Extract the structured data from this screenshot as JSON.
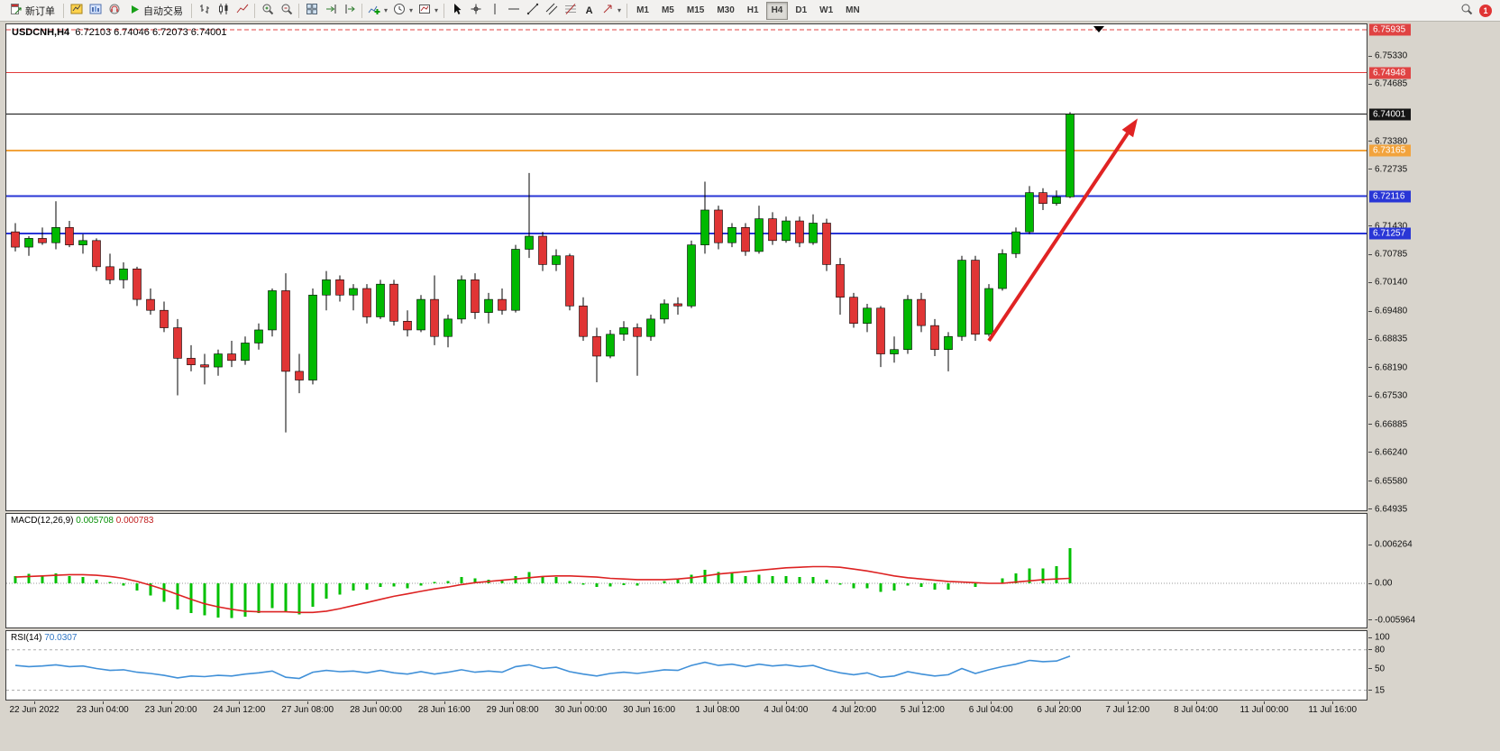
{
  "toolbar": {
    "new_order_label": "新订单",
    "auto_trading_label": "自动交易",
    "timeframes": [
      "M1",
      "M5",
      "M15",
      "M30",
      "H1",
      "H4",
      "D1",
      "W1",
      "MN"
    ],
    "active_timeframe": "H4",
    "badge_count": "1"
  },
  "icons": {
    "text_tool": "A"
  },
  "chart": {
    "symbol_period": "USDCNH,H4",
    "ohlc": "6.72103 6.74046 6.72073 6.74001"
  },
  "macd": {
    "name": "MACD(12,26,9)",
    "value": "0.005708",
    "signal_value": "0.000783"
  },
  "rsi": {
    "name": "RSI(14)",
    "value": "70.0307"
  },
  "chart_data": {
    "type": "candlestick",
    "symbol": "USDCNH",
    "period": "H4",
    "up_color": "#00b900",
    "down_color": "#e03535",
    "price_axis_ticks": [
      "6.75330",
      "6.74685",
      "6.73380",
      "6.72735",
      "6.71430",
      "6.70785",
      "6.70140",
      "6.69480",
      "6.68835",
      "6.68190",
      "6.67530",
      "6.66885",
      "6.66240",
      "6.65580",
      "6.64935"
    ],
    "price_line_labels": [
      {
        "price": 6.75935,
        "text": "6.75935",
        "color": "#e04343"
      },
      {
        "price": 6.74948,
        "text": "6.74948",
        "color": "#e04343"
      },
      {
        "price": 6.74001,
        "text": "6.74001",
        "color": "#151515"
      },
      {
        "price": 6.73165,
        "text": "6.73165",
        "color": "#f2a33c"
      },
      {
        "price": 6.72116,
        "text": "6.72116",
        "color": "#2936d6"
      },
      {
        "price": 6.71257,
        "text": "6.71257",
        "color": "#2936d6"
      }
    ],
    "hlines": [
      {
        "price": 6.75935,
        "color": "#e04343",
        "style": "dashed",
        "width": 1
      },
      {
        "price": 6.74948,
        "color": "#e23b3b",
        "style": "solid",
        "width": 1
      },
      {
        "price": 6.74001,
        "color": "#101010",
        "style": "solid",
        "width": 1
      },
      {
        "price": 6.73165,
        "color": "#f2a33c",
        "style": "solid",
        "width": 2
      },
      {
        "price": 6.72116,
        "color": "#2936d6",
        "style": "solid",
        "width": 2
      },
      {
        "price": 6.71257,
        "color": "#2936d6",
        "style": "solid",
        "width": 2
      }
    ],
    "trend_arrow": {
      "from_candle": 72,
      "from_price": 6.688,
      "to_candle": 83,
      "to_price": 6.739,
      "color": "#e02323"
    },
    "x_labels": [
      "22 Jun 2022",
      "23 Jun 04:00",
      "23 Jun 20:00",
      "24 Jun 12:00",
      "27 Jun 08:00",
      "28 Jun 00:00",
      "28 Jun 16:00",
      "29 Jun 08:00",
      "30 Jun 00:00",
      "30 Jun 16:00",
      "1 Jul 08:00",
      "4 Jul 04:00",
      "4 Jul 20:00",
      "5 Jul 12:00",
      "6 Jul 04:00",
      "6 Jul 20:00",
      "7 Jul 12:00",
      "8 Jul 04:00",
      "11 Jul 00:00",
      "11 Jul 16:00"
    ],
    "candles": [
      [
        6.713,
        6.715,
        6.7085,
        6.7095
      ],
      [
        6.7095,
        6.712,
        6.7075,
        6.7115
      ],
      [
        6.7115,
        6.714,
        6.71,
        6.7105
      ],
      [
        6.7105,
        6.72,
        6.709,
        6.714
      ],
      [
        6.714,
        6.7155,
        6.7095,
        6.71
      ],
      [
        6.71,
        6.7125,
        6.708,
        6.711
      ],
      [
        6.711,
        6.7115,
        6.704,
        6.705
      ],
      [
        6.705,
        6.708,
        6.701,
        6.702
      ],
      [
        6.702,
        6.706,
        6.7,
        6.7045
      ],
      [
        6.7045,
        6.705,
        6.696,
        6.6975
      ],
      [
        6.6975,
        6.7,
        6.694,
        6.695
      ],
      [
        6.695,
        6.697,
        6.69,
        6.691
      ],
      [
        6.691,
        6.693,
        6.6755,
        6.684
      ],
      [
        6.684,
        6.687,
        6.681,
        6.6825
      ],
      [
        6.6825,
        6.685,
        6.678,
        6.682
      ],
      [
        6.682,
        6.686,
        6.68,
        6.685
      ],
      [
        6.685,
        6.688,
        6.682,
        6.6835
      ],
      [
        6.6835,
        6.689,
        6.6825,
        6.6875
      ],
      [
        6.6875,
        6.692,
        6.686,
        6.6905
      ],
      [
        6.6905,
        6.7,
        6.689,
        6.6995
      ],
      [
        6.6995,
        6.7035,
        6.667,
        6.681
      ],
      [
        6.681,
        6.685,
        6.676,
        6.679
      ],
      [
        6.679,
        6.7,
        6.678,
        6.6985
      ],
      [
        6.6985,
        6.704,
        6.695,
        6.702
      ],
      [
        6.702,
        6.703,
        6.697,
        6.6985
      ],
      [
        6.6985,
        6.701,
        6.695,
        6.7
      ],
      [
        6.7,
        6.701,
        6.692,
        6.6935
      ],
      [
        6.6935,
        6.702,
        6.693,
        6.701
      ],
      [
        6.701,
        6.702,
        6.6915,
        6.6925
      ],
      [
        6.6925,
        6.695,
        6.689,
        6.6905
      ],
      [
        6.6905,
        6.6985,
        6.69,
        6.6975
      ],
      [
        6.6975,
        6.703,
        6.687,
        6.689
      ],
      [
        6.689,
        6.694,
        6.6865,
        6.693
      ],
      [
        6.693,
        6.703,
        6.692,
        6.702
      ],
      [
        6.702,
        6.7035,
        6.693,
        6.6945
      ],
      [
        6.6945,
        6.699,
        6.692,
        6.6975
      ],
      [
        6.6975,
        6.7,
        6.694,
        6.695
      ],
      [
        6.695,
        6.71,
        6.6945,
        6.709
      ],
      [
        6.709,
        6.7265,
        6.707,
        6.712
      ],
      [
        6.712,
        6.713,
        6.704,
        6.7055
      ],
      [
        6.7055,
        6.709,
        6.704,
        6.7075
      ],
      [
        6.7075,
        6.708,
        6.695,
        6.696
      ],
      [
        6.696,
        6.698,
        6.688,
        6.689
      ],
      [
        6.689,
        6.691,
        6.6785,
        6.6845
      ],
      [
        6.6845,
        6.6905,
        6.684,
        6.6895
      ],
      [
        6.6895,
        6.6925,
        6.688,
        6.691
      ],
      [
        6.691,
        6.692,
        6.68,
        6.689
      ],
      [
        6.689,
        6.694,
        6.688,
        6.693
      ],
      [
        6.693,
        6.6975,
        6.692,
        6.6965
      ],
      [
        6.6965,
        6.698,
        6.694,
        6.696
      ],
      [
        6.696,
        6.711,
        6.6955,
        6.71
      ],
      [
        6.71,
        6.7245,
        6.708,
        6.718
      ],
      [
        6.718,
        6.719,
        6.709,
        6.7105
      ],
      [
        6.7105,
        6.715,
        6.7095,
        6.714
      ],
      [
        6.714,
        6.715,
        6.7075,
        6.7085
      ],
      [
        6.7085,
        6.719,
        6.708,
        6.716
      ],
      [
        6.716,
        6.7175,
        6.71,
        6.711
      ],
      [
        6.711,
        6.7165,
        6.7105,
        6.7155
      ],
      [
        6.7155,
        6.7165,
        6.7095,
        6.7105
      ],
      [
        6.7105,
        6.717,
        6.71,
        6.715
      ],
      [
        6.715,
        6.716,
        6.704,
        6.7055
      ],
      [
        6.7055,
        6.707,
        6.694,
        6.698
      ],
      [
        6.698,
        6.699,
        6.691,
        6.692
      ],
      [
        6.692,
        6.6965,
        6.69,
        6.6955
      ],
      [
        6.6955,
        6.696,
        6.682,
        6.685
      ],
      [
        6.685,
        6.689,
        6.683,
        6.686
      ],
      [
        6.686,
        6.6985,
        6.685,
        6.6975
      ],
      [
        6.6975,
        6.699,
        6.69,
        6.6915
      ],
      [
        6.6915,
        6.693,
        6.6845,
        6.686
      ],
      [
        6.686,
        6.69,
        6.681,
        6.689
      ],
      [
        6.689,
        6.7075,
        6.688,
        6.7065
      ],
      [
        6.7065,
        6.7075,
        6.688,
        6.6895
      ],
      [
        6.6895,
        6.701,
        6.689,
        6.7
      ],
      [
        6.7,
        6.709,
        6.6995,
        6.708
      ],
      [
        6.708,
        6.714,
        6.707,
        6.713
      ],
      [
        6.713,
        6.7235,
        6.7125,
        6.722
      ],
      [
        6.722,
        6.723,
        6.718,
        6.7195
      ],
      [
        6.7195,
        6.7225,
        6.719,
        6.721
      ],
      [
        6.72103,
        6.74046,
        6.72073,
        6.74001
      ]
    ],
    "macd": {
      "hist_color": "#00c000",
      "signal_color": "#dd2222",
      "axis_ticks": [
        {
          "text": "0.006264",
          "value": 0.006264
        },
        {
          "text": "0.00",
          "value": 0
        },
        {
          "text": "-0.005964",
          "value": -0.005964
        }
      ],
      "histogram": [
        0.0012,
        0.0015,
        0.0013,
        0.0016,
        0.0012,
        0.001,
        0.0006,
        0.0002,
        -0.0004,
        -0.0012,
        -0.002,
        -0.003,
        -0.0042,
        -0.0048,
        -0.0052,
        -0.0055,
        -0.0056,
        -0.0054,
        -0.0048,
        -0.004,
        -0.0045,
        -0.005,
        -0.0038,
        -0.0025,
        -0.0018,
        -0.0012,
        -0.001,
        -0.0006,
        -0.0005,
        -0.0008,
        -0.0004,
        0.0002,
        0.0004,
        0.001,
        0.0008,
        0.0006,
        0.0005,
        0.0012,
        0.0018,
        0.0012,
        0.001,
        0.0004,
        -0.0002,
        -0.0006,
        -0.0005,
        -0.0003,
        -0.0004,
        0.0,
        0.0004,
        0.0006,
        0.0014,
        0.0022,
        0.0018,
        0.0016,
        0.0012,
        0.0014,
        0.0012,
        0.0012,
        0.001,
        0.001,
        0.0006,
        -0.0002,
        -0.0008,
        -0.0008,
        -0.0014,
        -0.0012,
        -0.0004,
        -0.0006,
        -0.001,
        -0.001,
        0.0,
        -0.0006,
        0.0,
        0.0008,
        0.0016,
        0.0024,
        0.0024,
        0.0028,
        0.0057
      ],
      "signal": [
        0.001,
        0.0011,
        0.0012,
        0.0013,
        0.0014,
        0.0014,
        0.0013,
        0.0011,
        0.0008,
        0.0003,
        -0.0003,
        -0.001,
        -0.0018,
        -0.0026,
        -0.0033,
        -0.0038,
        -0.0042,
        -0.0045,
        -0.0046,
        -0.0046,
        -0.0046,
        -0.0047,
        -0.0047,
        -0.0045,
        -0.0041,
        -0.0036,
        -0.0031,
        -0.0026,
        -0.0021,
        -0.0017,
        -0.0013,
        -0.0009,
        -0.0006,
        -0.0002,
        0.0001,
        0.0003,
        0.0005,
        0.0007,
        0.0009,
        0.0011,
        0.0012,
        0.0012,
        0.0011,
        0.001,
        0.0008,
        0.0007,
        0.0006,
        0.0006,
        0.0006,
        0.0007,
        0.0009,
        0.0012,
        0.0015,
        0.0017,
        0.0019,
        0.0021,
        0.0023,
        0.0025,
        0.0026,
        0.0027,
        0.0027,
        0.0026,
        0.0023,
        0.002,
        0.0016,
        0.0012,
        0.0009,
        0.0007,
        0.0005,
        0.0003,
        0.0002,
        0.0001,
        0.0,
        0.0,
        0.0002,
        0.0004,
        0.0006,
        0.0007,
        0.0008
      ]
    },
    "rsi": {
      "line_color": "#4090d8",
      "levels": [
        80,
        15
      ],
      "axis_ticks": [
        {
          "text": "100",
          "value": 100
        },
        {
          "text": "80",
          "value": 80
        },
        {
          "text": "50",
          "value": 50
        },
        {
          "text": "15",
          "value": 15
        }
      ],
      "values": [
        55,
        53,
        54,
        56,
        53,
        54,
        50,
        47,
        48,
        44,
        42,
        39,
        35,
        38,
        37,
        39,
        38,
        41,
        43,
        46,
        36,
        34,
        44,
        47,
        45,
        46,
        43,
        47,
        43,
        41,
        45,
        41,
        44,
        48,
        44,
        46,
        44,
        53,
        56,
        50,
        52,
        45,
        41,
        38,
        42,
        44,
        42,
        45,
        48,
        47,
        55,
        60,
        55,
        57,
        53,
        57,
        54,
        56,
        53,
        55,
        48,
        43,
        40,
        43,
        36,
        38,
        45,
        41,
        38,
        40,
        50,
        42,
        48,
        53,
        57,
        63,
        61,
        62,
        70.03
      ]
    }
  }
}
